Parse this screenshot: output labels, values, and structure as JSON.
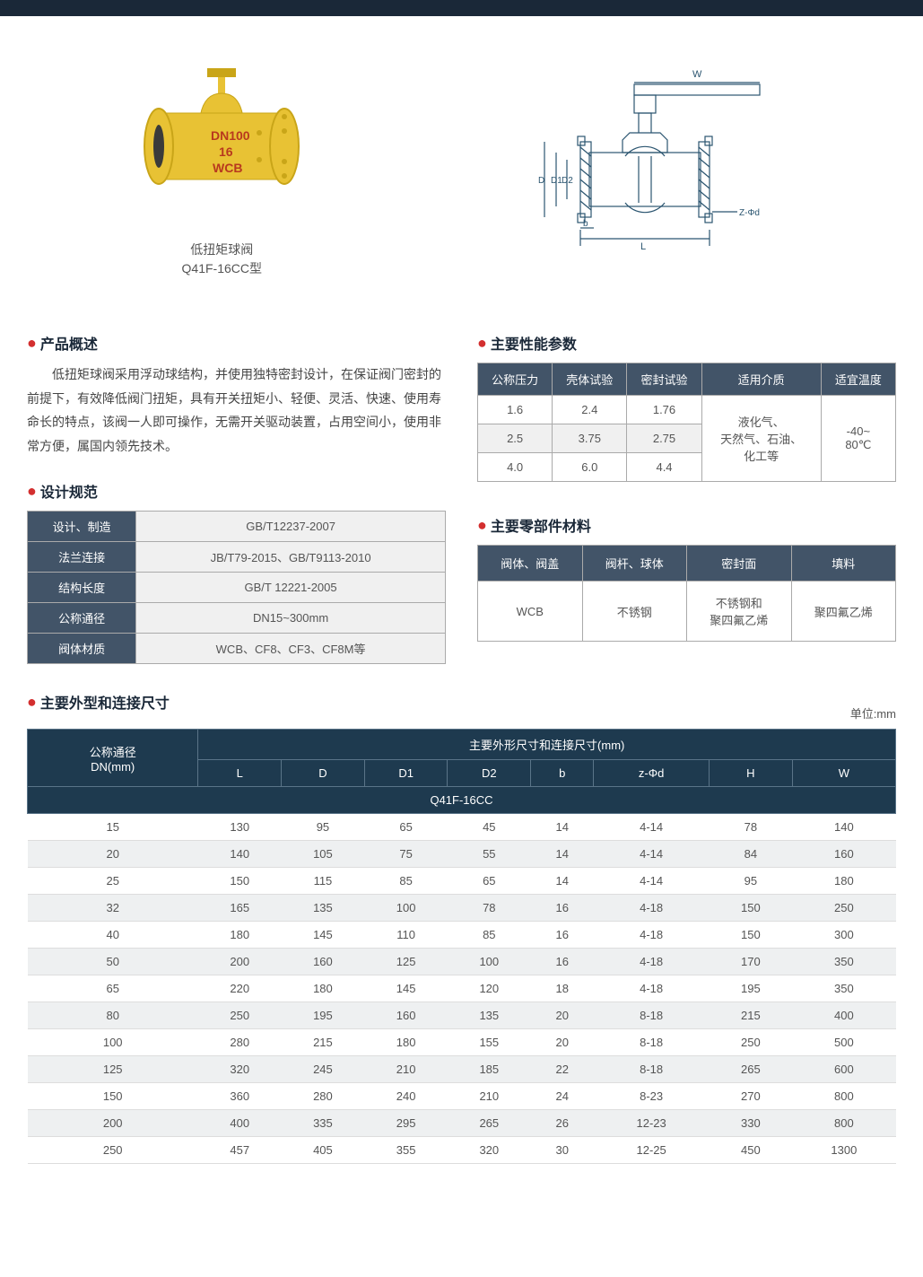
{
  "caption_line1": "低扭矩球阀",
  "caption_line2": "Q41F-16CC型",
  "diagram_labels": {
    "W": "W",
    "D": "D",
    "D1": "D1",
    "D2": "D2",
    "b": "b",
    "L": "L",
    "Zd": "Z-Φd"
  },
  "overview": {
    "title": "产品概述",
    "body": "低扭矩球阀采用浮动球结构，并使用独特密封设计，在保证阀门密封的前提下，有效降低阀门扭矩，具有开关扭矩小、轻便、灵活、快速、使用寿命长的特点，该阀一人即可操作，无需开关驱动装置，占用空间小，使用非常方便，属国内领先技术。"
  },
  "design": {
    "title": "设计规范",
    "rows": [
      [
        "设计、制造",
        "GB/T12237-2007"
      ],
      [
        "法兰连接",
        "JB/T79-2015、GB/T9113-2010"
      ],
      [
        "结构长度",
        "GB/T 12221-2005"
      ],
      [
        "公称通径",
        "DN15~300mm"
      ],
      [
        "阀体材质",
        "WCB、CF8、CF3、CF8M等"
      ]
    ]
  },
  "performance": {
    "title": "主要性能参数",
    "headers": [
      "公称压力",
      "壳体试验",
      "密封试验",
      "适用介质",
      "适宜温度"
    ],
    "rows": [
      [
        "1.6",
        "2.4",
        "1.76"
      ],
      [
        "2.5",
        "3.75",
        "2.75"
      ],
      [
        "4.0",
        "6.0",
        "4.4"
      ]
    ],
    "medium": "液化气、\n天然气、石油、\n化工等",
    "temp": "-40~\n80℃"
  },
  "materials": {
    "title": "主要零部件材料",
    "headers": [
      "阀体、阀盖",
      "阀杆、球体",
      "密封面",
      "填料"
    ],
    "row": [
      "WCB",
      "不锈钢",
      "不锈钢和\n聚四氟乙烯",
      "聚四氟乙烯"
    ]
  },
  "dimensions": {
    "title": "主要外型和连接尺寸",
    "unit": "单位:mm",
    "corner": "公称通径\nDN(mm)",
    "group_header": "主要外形尺寸和连接尺寸(mm)",
    "cols": [
      "L",
      "D",
      "D1",
      "D2",
      "b",
      "z-Φd",
      "H",
      "W"
    ],
    "model": "Q41F-16CC",
    "rows": [
      [
        "15",
        "130",
        "95",
        "65",
        "45",
        "14",
        "4-14",
        "78",
        "140"
      ],
      [
        "20",
        "140",
        "105",
        "75",
        "55",
        "14",
        "4-14",
        "84",
        "160"
      ],
      [
        "25",
        "150",
        "115",
        "85",
        "65",
        "14",
        "4-14",
        "95",
        "180"
      ],
      [
        "32",
        "165",
        "135",
        "100",
        "78",
        "16",
        "4-18",
        "150",
        "250"
      ],
      [
        "40",
        "180",
        "145",
        "110",
        "85",
        "16",
        "4-18",
        "150",
        "300"
      ],
      [
        "50",
        "200",
        "160",
        "125",
        "100",
        "16",
        "4-18",
        "170",
        "350"
      ],
      [
        "65",
        "220",
        "180",
        "145",
        "120",
        "18",
        "4-18",
        "195",
        "350"
      ],
      [
        "80",
        "250",
        "195",
        "160",
        "135",
        "20",
        "8-18",
        "215",
        "400"
      ],
      [
        "100",
        "280",
        "215",
        "180",
        "155",
        "20",
        "8-18",
        "250",
        "500"
      ],
      [
        "125",
        "320",
        "245",
        "210",
        "185",
        "22",
        "8-18",
        "265",
        "600"
      ],
      [
        "150",
        "360",
        "280",
        "240",
        "210",
        "24",
        "8-23",
        "270",
        "800"
      ],
      [
        "200",
        "400",
        "335",
        "295",
        "265",
        "26",
        "12-23",
        "330",
        "800"
      ],
      [
        "250",
        "457",
        "405",
        "355",
        "320",
        "30",
        "12-25",
        "450",
        "1300"
      ]
    ]
  },
  "colors": {
    "header_dark": "#1e3a4f",
    "header_mid": "#425468",
    "accent_red": "#d32f2f",
    "valve_yellow": "#e8c234",
    "valve_shadow": "#c9a518",
    "row_alt": "#eef0f1",
    "grey_cell": "#f0f0f0",
    "diagram_line": "#2b5570"
  }
}
